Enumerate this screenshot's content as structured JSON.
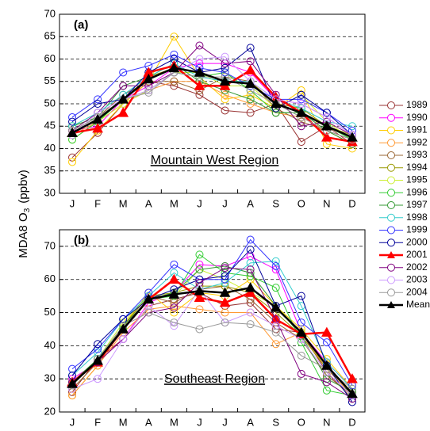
{
  "ylabel": {
    "text": "MDA8 O",
    "sub": "3",
    "unit": "(ppbv)"
  },
  "chart_data": [
    {
      "type": "line",
      "panel_label": "(a)",
      "region": "Mountain West Region",
      "categories": [
        "J",
        "F",
        "M",
        "A",
        "M",
        "J",
        "J",
        "A",
        "S",
        "O",
        "N",
        "D"
      ],
      "ylim": [
        30,
        70
      ],
      "yticks": [
        30,
        35,
        40,
        45,
        50,
        55,
        60,
        65,
        70
      ],
      "grid": true,
      "series": [
        {
          "name": "1989",
          "color": "#993333",
          "marker": "circle",
          "values": [
            38,
            43.5,
            50,
            55,
            54,
            52,
            48.5,
            48,
            50,
            41.5,
            45,
            41
          ]
        },
        {
          "name": "1990",
          "color": "#ff00ff",
          "marker": "circle",
          "values": [
            44,
            45,
            51,
            54,
            58,
            59,
            59,
            57,
            51,
            50,
            47,
            43
          ]
        },
        {
          "name": "1991",
          "color": "#ffcc00",
          "marker": "circle",
          "values": [
            37,
            44,
            50,
            55,
            65,
            56,
            51,
            52,
            49,
            53,
            41,
            40
          ]
        },
        {
          "name": "1992",
          "color": "#ff9933",
          "marker": "circle",
          "values": [
            43,
            46,
            50,
            53,
            55,
            55,
            52,
            50,
            48,
            47,
            44,
            41
          ]
        },
        {
          "name": "1993",
          "color": "#996633",
          "marker": "circle",
          "values": [
            44,
            47,
            52,
            55,
            55,
            53,
            56,
            55,
            49,
            46,
            44,
            42
          ]
        },
        {
          "name": "1994",
          "color": "#999900",
          "marker": "circle",
          "values": [
            45,
            47,
            51,
            56,
            58,
            57,
            55,
            55,
            50,
            49,
            45,
            43
          ]
        },
        {
          "name": "1995",
          "color": "#ccee33",
          "marker": "circle",
          "values": [
            42,
            46,
            50,
            53,
            57,
            57,
            54,
            54,
            49,
            52,
            46,
            42
          ]
        },
        {
          "name": "1996",
          "color": "#33cc33",
          "marker": "circle",
          "values": [
            42,
            46,
            51,
            53,
            57,
            56,
            57,
            53,
            48,
            48,
            45,
            42
          ]
        },
        {
          "name": "1997",
          "color": "#339933",
          "marker": "circle",
          "values": [
            45,
            47,
            54,
            56,
            59,
            55,
            53,
            51,
            48,
            48,
            44,
            41
          ]
        },
        {
          "name": "1998",
          "color": "#33cccc",
          "marker": "circle",
          "values": [
            45,
            48,
            52,
            56,
            59,
            56,
            55,
            55,
            51,
            49,
            46,
            45
          ]
        },
        {
          "name": "1999",
          "color": "#3333ff",
          "marker": "circle",
          "values": [
            47,
            51,
            57,
            58.5,
            61,
            58,
            57,
            54,
            51,
            51,
            48,
            44
          ]
        },
        {
          "name": "2000",
          "color": "#000099",
          "marker": "circle",
          "values": [
            46,
            50,
            51,
            57,
            60,
            57,
            58,
            62.5,
            49,
            52,
            48,
            43
          ]
        },
        {
          "name": "2001",
          "color": "#ff0000",
          "marker": "triangle",
          "width": 2.5,
          "values": [
            43.5,
            44.5,
            48,
            57,
            58.5,
            54,
            54,
            57.5,
            51.5,
            48,
            42.5,
            41.5
          ]
        },
        {
          "name": "2002",
          "color": "#800080",
          "marker": "circle",
          "values": [
            44,
            48,
            54,
            54,
            57,
            63,
            59,
            59.5,
            52,
            45,
            46,
            43
          ]
        },
        {
          "name": "2003",
          "color": "#cc99ff",
          "marker": "circle",
          "values": [
            43,
            48,
            51,
            53,
            57,
            60,
            60.5,
            55,
            51,
            50,
            47,
            43
          ]
        },
        {
          "name": "2004",
          "color": "#999999",
          "marker": "circle",
          "values": [
            44,
            47,
            51,
            52.5,
            57,
            56,
            56,
            53,
            50,
            47,
            44,
            42
          ]
        },
        {
          "name": "Mean",
          "color": "#000000",
          "marker": "triangle",
          "width": 2.5,
          "values": [
            43.5,
            46.5,
            51,
            55.5,
            58,
            57,
            55,
            54.5,
            50,
            48,
            45,
            42.5
          ]
        }
      ]
    },
    {
      "type": "line",
      "panel_label": "(b)",
      "region": "Southeast Region",
      "categories": [
        "J",
        "F",
        "M",
        "A",
        "M",
        "J",
        "J",
        "A",
        "S",
        "O",
        "N",
        "D"
      ],
      "ylim": [
        20,
        75
      ],
      "yticks": [
        20,
        30,
        40,
        50,
        60,
        70
      ],
      "grid": true,
      "series": [
        {
          "color": "#993333",
          "marker": "circle",
          "values": [
            26,
            36,
            42,
            52,
            54,
            56,
            52,
            53,
            45,
            44,
            32,
            24
          ]
        },
        {
          "color": "#ff00ff",
          "marker": "circle",
          "values": [
            30,
            35,
            42,
            53,
            56,
            64.5,
            64,
            67,
            63,
            44,
            35,
            27
          ]
        },
        {
          "color": "#ffcc00",
          "marker": "circle",
          "values": [
            25,
            34,
            46,
            56,
            50,
            56,
            55,
            60,
            52,
            45,
            36,
            27
          ]
        },
        {
          "color": "#ff9933",
          "marker": "circle",
          "values": [
            25,
            34,
            44,
            51,
            52,
            51,
            50,
            50,
            40.5,
            44,
            33,
            25
          ]
        },
        {
          "color": "#996633",
          "marker": "circle",
          "values": [
            27,
            35,
            46,
            55,
            53,
            57,
            58,
            54,
            47,
            42,
            31,
            25
          ]
        },
        {
          "color": "#999900",
          "marker": "circle",
          "values": [
            28,
            36,
            46,
            55,
            56,
            58,
            58,
            56,
            50,
            43,
            33,
            26
          ]
        },
        {
          "color": "#ccee33",
          "marker": "circle",
          "values": [
            28,
            36,
            47,
            55,
            55,
            63,
            60,
            56,
            52,
            44,
            34,
            26
          ]
        },
        {
          "color": "#33cc33",
          "marker": "circle",
          "values": [
            29,
            36,
            45,
            54,
            55,
            67.5,
            62,
            61,
            57.5,
            41,
            26.5,
            25
          ]
        },
        {
          "color": "#339933",
          "marker": "circle",
          "values": [
            29,
            36,
            46,
            54,
            56,
            63,
            64,
            62,
            52,
            43,
            30,
            26
          ]
        },
        {
          "color": "#33cccc",
          "marker": "circle",
          "values": [
            31,
            38,
            48,
            55,
            62,
            57,
            59,
            65,
            65.5,
            52,
            35,
            27
          ]
        },
        {
          "color": "#3333ff",
          "marker": "circle",
          "values": [
            33,
            39,
            48,
            56,
            64.5,
            60,
            60,
            72,
            64,
            47,
            41,
            28
          ]
        },
        {
          "color": "#000099",
          "marker": "circle",
          "values": [
            31,
            40.5,
            48,
            54,
            57,
            60,
            61,
            69,
            52,
            55,
            34,
            23
          ]
        },
        {
          "color": "#ff0000",
          "marker": "triangle",
          "width": 2.5,
          "values": [
            29,
            35,
            45,
            54,
            60,
            54.5,
            53,
            56,
            48,
            43.5,
            44,
            30
          ]
        },
        {
          "color": "#800080",
          "marker": "circle",
          "values": [
            29,
            35,
            42,
            50,
            51.5,
            59,
            63.5,
            63,
            48,
            31.5,
            29,
            24
          ]
        },
        {
          "color": "#cc99ff",
          "marker": "circle",
          "values": [
            27,
            30,
            42,
            52,
            46,
            57,
            47,
            50,
            46,
            42,
            32,
            25
          ]
        },
        {
          "color": "#999999",
          "marker": "circle",
          "values": [
            28,
            36,
            46,
            50,
            47,
            45,
            47,
            46.5,
            44,
            37,
            33,
            27
          ]
        },
        {
          "color": "#000000",
          "marker": "triangle",
          "width": 2.5,
          "values": [
            28.5,
            35.5,
            45,
            54,
            55.5,
            56.5,
            56,
            57.5,
            51.5,
            44,
            34,
            25.5
          ]
        }
      ]
    }
  ]
}
